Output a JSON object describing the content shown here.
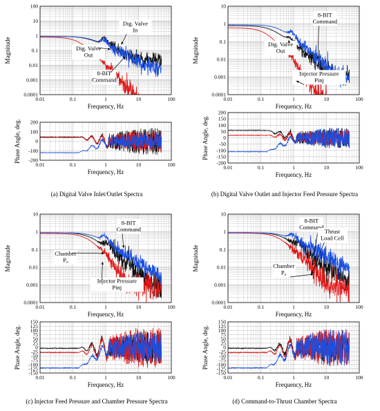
{
  "figure": {
    "colors": {
      "black": "#111111",
      "red": "#e01818",
      "blue": "#1a4fe0",
      "grid": "#b8b8b8"
    }
  },
  "chart_data": [
    {
      "id": "a_mag",
      "type": "line",
      "xscale": "log",
      "yscale": "log",
      "xlim": [
        0.01,
        100
      ],
      "ylim": [
        0.0001,
        100
      ],
      "xticks": [
        "0.01",
        "0.1",
        "1",
        "10",
        "100"
      ],
      "yticks": [
        "0.0001",
        "0.001",
        "0.01",
        "0.1",
        "1",
        "10",
        "100"
      ],
      "xlabel": "Frequency, Hz",
      "ylabel": "Magnitude",
      "grid": true,
      "series": [
        {
          "color": "black",
          "shape": "mag",
          "low": 0.9,
          "fc": 0.25,
          "order": 1,
          "floor": 0.02,
          "res": [
            [
              0.9,
              3.0,
              0.2
            ],
            [
              1.5,
              1.6,
              0.25
            ]
          ],
          "noise": 0.25
        },
        {
          "color": "red",
          "shape": "mag",
          "low": 0.8,
          "fc": 0.15,
          "order": 2.3,
          "floor": 0,
          "res": [
            [
              1.8,
              1.6,
              0.25
            ]
          ],
          "noise": 0.35
        },
        {
          "color": "blue",
          "shape": "mag",
          "low": 0.9,
          "fc": 0.3,
          "order": 1.1,
          "floor": 0.002,
          "res": [
            [
              0.95,
              2.2,
              0.25
            ]
          ],
          "noise": 0.3
        }
      ],
      "annotations": [
        {
          "lines": [
            "Dig. Valve",
            "In"
          ],
          "x": 8,
          "y": 5
        },
        {
          "lines": [
            "Dig. Valve",
            "Out"
          ],
          "x": 0.3,
          "y": 0.1
        },
        {
          "lines": [
            "8-BIT",
            "Command"
          ],
          "x": 0.9,
          "y": 0.002
        }
      ]
    },
    {
      "id": "a_ph",
      "type": "line",
      "xscale": "log",
      "yscale": "linear",
      "xlim": [
        0.01,
        100
      ],
      "ylim": [
        -200,
        200
      ],
      "xticks": [
        "0.01",
        "0.1",
        "1",
        "10",
        "100"
      ],
      "yticks": [
        "-200",
        "-100",
        "0",
        "100",
        "200"
      ],
      "xlabel": "Frequency, Hz",
      "ylabel": "Phase Angle, deg.",
      "grid": true,
      "series": [
        {
          "color": "black",
          "shape": "phase",
          "start": 45,
          "chaos": 0.5,
          "amp": 140
        },
        {
          "color": "red",
          "shape": "phase",
          "start": 40,
          "chaos": 0.4,
          "amp": 120
        },
        {
          "color": "blue",
          "shape": "phase",
          "start": -120,
          "chaos": 0.35,
          "amp": 100
        }
      ]
    },
    {
      "id": "b_mag",
      "type": "line",
      "xscale": "log",
      "yscale": "log",
      "xlim": [
        0.01,
        100
      ],
      "ylim": [
        0.0001,
        10
      ],
      "xticks": [
        "0.01",
        "0.1",
        "1",
        "10",
        "100"
      ],
      "yticks": [
        "0.0001",
        "0.001",
        "0.01",
        "0.1",
        "1",
        "10"
      ],
      "xlabel": "Frequency, Hz",
      "ylabel": "Magnitude",
      "grid": true,
      "series": [
        {
          "color": "black",
          "shape": "mag",
          "low": 0.8,
          "fc": 0.2,
          "order": 1.5,
          "floor": 0.001,
          "res": [
            [
              0.8,
              1.8,
              0.25
            ]
          ],
          "noise": 0.25
        },
        {
          "color": "red",
          "shape": "mag",
          "low": 0.6,
          "fc": 0.15,
          "order": 2.4,
          "floor": 0,
          "res": [
            [
              0.9,
              1.5,
              0.3
            ]
          ],
          "noise": 0.4
        },
        {
          "color": "blue",
          "shape": "mag",
          "low": 0.9,
          "fc": 0.35,
          "order": 1.6,
          "floor": 0.0008,
          "res": [
            [
              0.9,
              2.0,
              0.25
            ]
          ],
          "noise": 0.25
        }
      ],
      "annotations": [
        {
          "lines": [
            "8-BIT",
            "Command"
          ],
          "x": 9,
          "y": 2.5
        },
        {
          "lines": [
            "Dig. Valve",
            "Out"
          ],
          "x": 0.4,
          "y": 0.055
        },
        {
          "lines": [
            "Injector Pressure",
            "Pinj"
          ],
          "x": 6,
          "y": 0.0012
        }
      ]
    },
    {
      "id": "b_ph",
      "type": "line",
      "xscale": "log",
      "yscale": "linear",
      "xlim": [
        0.01,
        100
      ],
      "ylim": [
        -200,
        200
      ],
      "xticks": [
        "0.01",
        "0.1",
        "1",
        "10",
        "100"
      ],
      "yticks": [
        "-200",
        "-150",
        "-100",
        "-50",
        "0",
        "50",
        "100",
        "150",
        "200"
      ],
      "xlabel": "Frequency, Hz",
      "ylabel": "Phase Angle, deg.",
      "grid": true,
      "series": [
        {
          "color": "black",
          "shape": "phase",
          "start": 60,
          "chaos": 0.5,
          "amp": 80
        },
        {
          "color": "red",
          "shape": "phase",
          "start": 20,
          "chaos": 0.4,
          "amp": 70
        },
        {
          "color": "blue",
          "shape": "phase",
          "start": -110,
          "chaos": 0.6,
          "amp": 70
        }
      ]
    },
    {
      "id": "c_mag",
      "type": "line",
      "xscale": "log",
      "yscale": "log",
      "xlim": [
        0.01,
        100
      ],
      "ylim": [
        0.0001,
        10
      ],
      "xticks": [
        "0.01",
        "0.1",
        "1",
        "10",
        "100"
      ],
      "yticks": [
        "0.0001",
        "0.001",
        "0.01",
        "0.1",
        "1",
        "10"
      ],
      "xlabel": "Frequency, Hz",
      "ylabel": "Magnitude",
      "grid": true,
      "series": [
        {
          "color": "black",
          "shape": "mag",
          "low": 0.9,
          "fc": 0.3,
          "order": 1.5,
          "floor": 0.0006,
          "res": [
            [
              1.2,
              2.0,
              0.25
            ]
          ],
          "noise": 0.35
        },
        {
          "color": "red",
          "shape": "mag",
          "low": 0.8,
          "fc": 0.3,
          "order": 2.3,
          "floor": 0.0008,
          "res": [
            [
              0.9,
              1.3,
              0.3
            ]
          ],
          "noise": 0.4
        },
        {
          "color": "blue",
          "shape": "mag",
          "low": 0.9,
          "fc": 0.4,
          "order": 1.2,
          "floor": 0.002,
          "res": [
            [
              0.95,
              2.0,
              0.25
            ]
          ],
          "noise": 0.25
        }
      ],
      "annotations": [
        {
          "lines": [
            "8-BIT",
            "Command"
          ],
          "x": 5,
          "y": 2.5
        },
        {
          "lines": [
            "Chamber",
            "P₀"
          ],
          "x": 0.06,
          "y": 0.045
        },
        {
          "lines": [
            "Injector Pressure",
            "Pinj"
          ],
          "x": 2.2,
          "y": 0.0013
        }
      ]
    },
    {
      "id": "c_ph",
      "type": "line",
      "xscale": "log",
      "yscale": "linear",
      "xlim": [
        0.01,
        100
      ],
      "ylim": [
        -150,
        150
      ],
      "xticks": [
        "0.01",
        "0.1",
        "1",
        "10",
        "100"
      ],
      "yticks": [
        "-150",
        "-125",
        "-100",
        "-75",
        "-50",
        "-25",
        "0",
        "25",
        "50",
        "75",
        "100",
        "125",
        "150"
      ],
      "xlabel": "Frequency, Hz",
      "ylabel": "Phase Angle, deg.",
      "grid": true,
      "series": [
        {
          "color": "black",
          "shape": "phase",
          "start": -5,
          "chaos": 0.3,
          "amp": 120
        },
        {
          "color": "red",
          "shape": "phase",
          "start": -30,
          "chaos": 0.35,
          "amp": 140
        },
        {
          "color": "blue",
          "shape": "phase",
          "start": -120,
          "chaos": 0.6,
          "amp": 80
        }
      ]
    },
    {
      "id": "d_mag",
      "type": "line",
      "xscale": "log",
      "yscale": "log",
      "xlim": [
        0.01,
        100
      ],
      "ylim": [
        0.0001,
        10
      ],
      "xticks": [
        "0.01",
        "0.1",
        "1",
        "10",
        "100"
      ],
      "yticks": [
        "0.0001",
        "0.001",
        "0.01",
        "0.1",
        "1",
        "10"
      ],
      "xlabel": "Frequency, Hz",
      "ylabel": "Magnitude",
      "grid": true,
      "series": [
        {
          "color": "black",
          "shape": "mag",
          "low": 0.9,
          "fc": 0.4,
          "order": 1.4,
          "floor": 0.001,
          "res": [
            [
              1.5,
              2.0,
              0.25
            ]
          ],
          "noise": 0.35
        },
        {
          "color": "red",
          "shape": "mag",
          "low": 0.85,
          "fc": 0.35,
          "order": 2.0,
          "floor": 0.0008,
          "res": [
            [
              2.0,
              1.4,
              0.3
            ]
          ],
          "noise": 0.4
        },
        {
          "color": "blue",
          "shape": "mag",
          "low": 0.9,
          "fc": 0.45,
          "order": 1.0,
          "floor": 0.003,
          "res": [
            [
              0.95,
              2.0,
              0.25
            ]
          ],
          "noise": 0.3
        }
      ],
      "annotations": [
        {
          "lines": [
            "8-BIT",
            "Command"
          ],
          "x": 3.5,
          "y": 3.2
        },
        {
          "lines": [
            "Thrust",
            "Load Cell"
          ],
          "x": 15,
          "y": 0.8
        },
        {
          "lines": [
            "Chamber",
            "P₀"
          ],
          "x": 0.5,
          "y": 0.009
        }
      ]
    },
    {
      "id": "d_ph",
      "type": "line",
      "xscale": "log",
      "yscale": "linear",
      "xlim": [
        0.01,
        100
      ],
      "ylim": [
        -150,
        150
      ],
      "xticks": [
        "0.01",
        "0.1",
        "1",
        "10",
        "100"
      ],
      "yticks": [
        "-150",
        "-125",
        "-100",
        "-75",
        "-50",
        "-25",
        "0",
        "25",
        "50",
        "75",
        "100",
        "125",
        "150"
      ],
      "xlabel": "Frequency, Hz",
      "ylabel": "Phase Angle, deg.",
      "grid": true,
      "series": [
        {
          "color": "black",
          "shape": "phase",
          "start": -5,
          "chaos": 0.3,
          "amp": 110
        },
        {
          "color": "red",
          "shape": "phase",
          "start": -30,
          "chaos": 0.35,
          "amp": 130
        },
        {
          "color": "blue",
          "shape": "phase",
          "start": -120,
          "chaos": 0.7,
          "amp": 90
        }
      ]
    }
  ],
  "captions": {
    "a": "(a) Digital Valve Inlet/Outlet Spectra",
    "b": "(b) Digital Valve Outlet and Injector Feed Pressure Spectra",
    "c": "(c) Injector Feed Pressure and Chamber Pressure Spectra",
    "d": "(d) Command-to-Thrust Chamber Spectra"
  }
}
